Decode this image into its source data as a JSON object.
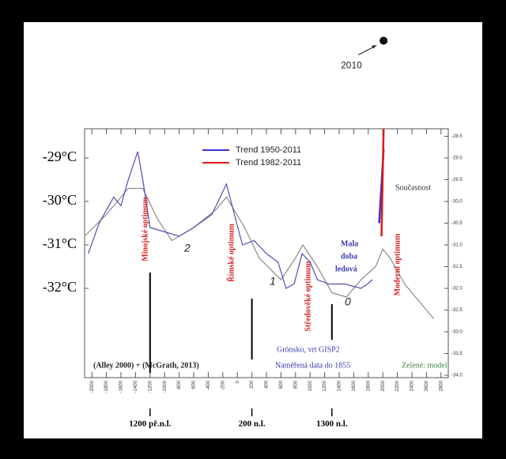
{
  "chart_data": {
    "type": "line",
    "xlim": [
      -2100,
      2900
    ],
    "ylim": [
      -34,
      -28.5
    ],
    "xticks": [
      -2000,
      -1800,
      -1600,
      -1400,
      -1200,
      -1000,
      -800,
      -600,
      -400,
      -200,
      0,
      200,
      400,
      600,
      800,
      1000,
      1200,
      1400,
      1600,
      1800,
      2000,
      2200,
      2400,
      2600,
      2800
    ],
    "yticks": [
      {
        "value": -29,
        "label": "-29°C"
      },
      {
        "value": -30,
        "label": "-30°C"
      },
      {
        "value": -31,
        "label": "-31°C"
      },
      {
        "value": -32,
        "label": "-32°C"
      }
    ],
    "y2ticks": [
      {
        "value": -28.5,
        "label": "-28.5"
      },
      {
        "value": -29,
        "label": "-29.0"
      },
      {
        "value": -29.5,
        "label": "-29.5"
      },
      {
        "value": -30,
        "label": "-30.0"
      },
      {
        "value": -30.5,
        "label": "-30.5"
      },
      {
        "value": -31,
        "label": "-31.0"
      },
      {
        "value": -31.5,
        "label": "-31.5"
      },
      {
        "value": -32,
        "label": "-32.0"
      },
      {
        "value": -32.5,
        "label": "-32.5"
      },
      {
        "value": -33,
        "label": "-33.0"
      },
      {
        "value": -33.5,
        "label": "-33.5"
      },
      {
        "value": -34,
        "label": "-34.0"
      }
    ],
    "series": [
      {
        "color": "#4f4fb5",
        "x": [
          -2050,
          -1900,
          -1700,
          -1600,
          -1500,
          -1370,
          -1300,
          -1200,
          -1000,
          -800,
          -600,
          -350,
          -150,
          -40,
          70,
          230,
          400,
          560,
          670,
          780,
          890,
          1000,
          1100,
          1260,
          1480,
          1700,
          1790,
          1855
        ],
        "values": [
          -31.2,
          -30.5,
          -29.9,
          -30.1,
          -29.5,
          -28.85,
          -29.5,
          -30.6,
          -30.7,
          -30.8,
          -30.6,
          -30.3,
          -29.6,
          -30.3,
          -31.0,
          -30.9,
          -31.2,
          -31.4,
          -32.0,
          -31.9,
          -31.2,
          -31.4,
          -31.8,
          -31.9,
          -31.9,
          -32.0,
          -31.9,
          -31.8
        ]
      },
      {
        "color": "#8a8a8a",
        "x": [
          -2100,
          -1800,
          -1500,
          -1300,
          -1100,
          -900,
          -600,
          -300,
          -150,
          100,
          300,
          600,
          800,
          900,
          1100,
          1300,
          1500,
          1700,
          1900,
          2000,
          2100,
          2300,
          2500,
          2700
        ],
        "values": [
          -30.8,
          -30.3,
          -29.7,
          -29.7,
          -30.4,
          -30.9,
          -30.6,
          -30.2,
          -29.9,
          -30.6,
          -31.3,
          -31.8,
          -31.3,
          -31.0,
          -31.5,
          -32.1,
          -32.2,
          -31.8,
          -31.5,
          -31.1,
          -31.3,
          -31.9,
          -32.3,
          -32.7
        ]
      }
    ],
    "trends": [
      {
        "name": "Trend 1950-2011",
        "color": "#3434d0",
        "x": [
          1950,
          2011
        ],
        "values": [
          -30.5,
          -28.8
        ]
      },
      {
        "name": "Trend 1982-2011",
        "color": "#e01818",
        "x": [
          1982,
          2011
        ],
        "values": [
          -30.8,
          -28.33
        ]
      }
    ],
    "point": {
      "label": "2010",
      "x": 2010,
      "value": -26.3
    },
    "markers": [
      {
        "label": "1200 př.n.l.",
        "x": -1200
      },
      {
        "label": "200 n.l.",
        "x": 200
      },
      {
        "label": "1300 n.l.",
        "x": 1300
      }
    ],
    "optima": [
      "Minojské optimum",
      "Římské optimum",
      "Středověké optimum",
      "Moderní optimum"
    ],
    "numbers": [
      "2",
      "1",
      "0"
    ],
    "notes": [
      "Mala",
      "doba",
      "ledová",
      "Současnost",
      "(Alley 2000) + (McGrath, 2013)",
      "Grónsko, vrt GISP2",
      "Naměřená data do 1855",
      "Zelené: model"
    ]
  }
}
